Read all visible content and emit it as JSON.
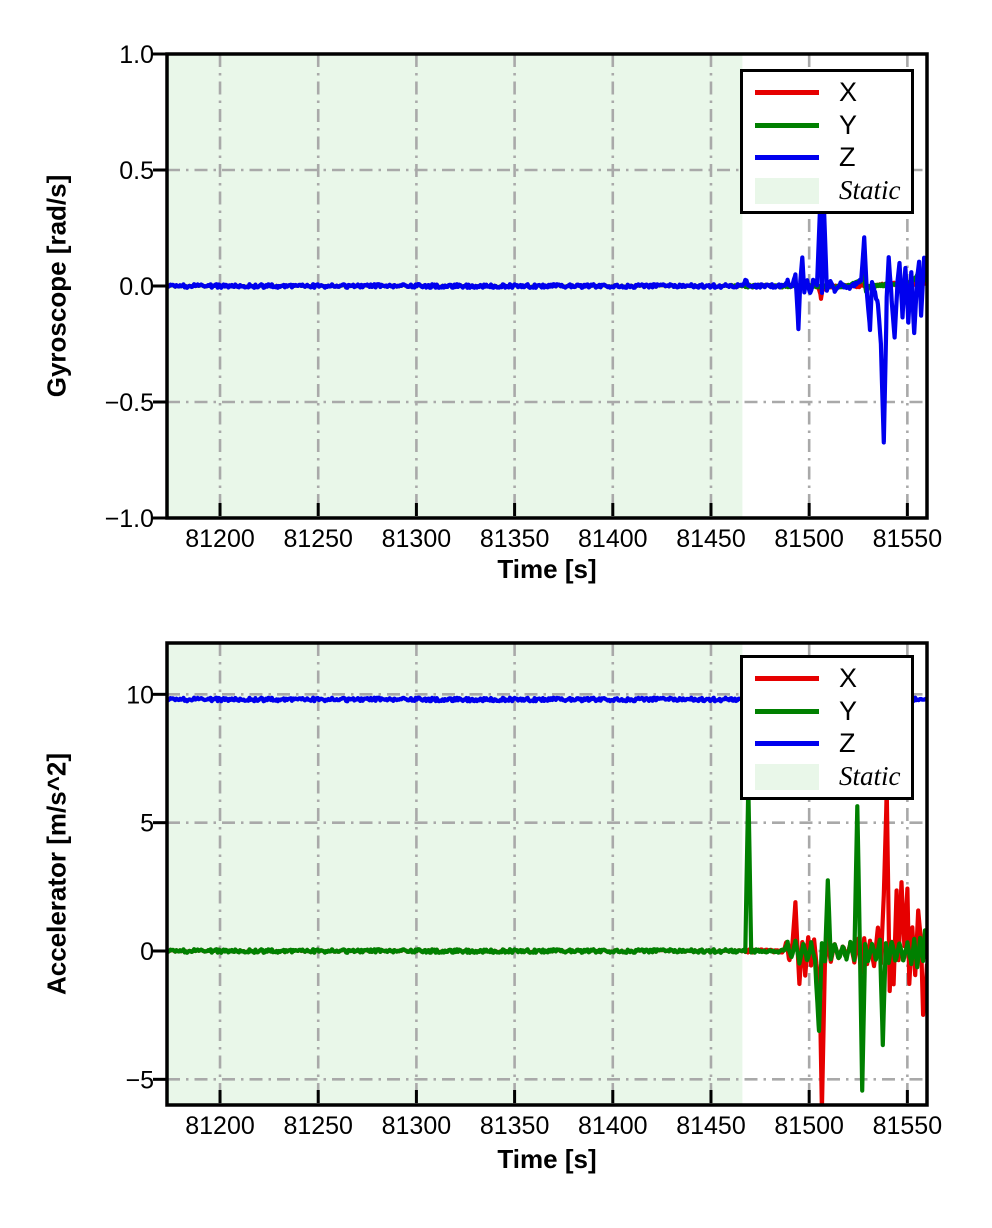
{
  "colors": {
    "x": "#e60000",
    "y": "#008000",
    "z": "#0000ee",
    "static_fill": "#e9f7e9",
    "grid": "#a9a9a9",
    "frame": "#000000"
  },
  "legend": {
    "x": "X",
    "y": "Y",
    "z": "Z",
    "static": "Static"
  },
  "chart_data": [
    {
      "type": "line",
      "title": "",
      "xlabel": "Time [s]",
      "ylabel": "Gyroscope [rad/s]",
      "xlim": [
        81173,
        81560
      ],
      "ylim": [
        -1.0,
        1.0
      ],
      "xticks": [
        81200,
        81250,
        81300,
        81350,
        81400,
        81450,
        81500,
        81550
      ],
      "xtick_labels": [
        "81200",
        "81250",
        "81300",
        "81350",
        "81400",
        "81450",
        "81500",
        "81550"
      ],
      "yticks": [
        {
          "v": -1.0,
          "label": "−1.0"
        },
        {
          "v": -0.5,
          "label": "−0.5"
        },
        {
          "v": 0.0,
          "label": "0.0"
        },
        {
          "v": 0.5,
          "label": "0.5"
        },
        {
          "v": 1.0,
          "label": "1.0"
        }
      ],
      "grid": "dash-dot",
      "legend_position": "upper right",
      "legend_entries": [
        "X",
        "Y",
        "Z",
        "Static"
      ],
      "static_span": [
        81173,
        81466
      ],
      "series": [
        {
          "name": "X",
          "color": "x",
          "noise": 0.006,
          "points": [
            [
              81173,
              0
            ],
            [
              81500,
              0
            ],
            [
              81504.5,
              0
            ],
            [
              81506,
              -0.05
            ],
            [
              81507.5,
              0
            ],
            [
              81530,
              0
            ],
            [
              81545,
              0.01
            ],
            [
              81560,
              0.01
            ]
          ]
        },
        {
          "name": "Y",
          "color": "y",
          "noise": 0.006,
          "points": [
            [
              81173,
              0
            ],
            [
              81520,
              0
            ],
            [
              81526,
              0.02
            ],
            [
              81527.5,
              0.05
            ],
            [
              81529,
              -0.02
            ],
            [
              81531,
              0
            ],
            [
              81550,
              0.01
            ],
            [
              81554,
              0.03
            ],
            [
              81556,
              0.07
            ],
            [
              81558,
              0.02
            ],
            [
              81560,
              0.05
            ]
          ]
        },
        {
          "name": "Z",
          "color": "z",
          "noise": 0.008,
          "points": [
            [
              81173,
              0
            ],
            [
              81460,
              0
            ],
            [
              81466,
              0.005
            ],
            [
              81467.5,
              0.03
            ],
            [
              81469,
              0
            ],
            [
              81487,
              0
            ],
            [
              81489,
              0.02
            ],
            [
              81491,
              -0.01
            ],
            [
              81493,
              0.05
            ],
            [
              81494.5,
              -0.18
            ],
            [
              81495.5,
              0.02
            ],
            [
              81496.5,
              0.13
            ],
            [
              81497.5,
              -0.02
            ],
            [
              81499,
              0.02
            ],
            [
              81500.5,
              -0.03
            ],
            [
              81502,
              0.02
            ],
            [
              81504,
              0
            ],
            [
              81505.5,
              0.33
            ],
            [
              81506.5,
              -0.03
            ],
            [
              81507.5,
              0.35
            ],
            [
              81509,
              -0.02
            ],
            [
              81511,
              0.02
            ],
            [
              81513,
              -0.02
            ],
            [
              81516,
              0.01
            ],
            [
              81520,
              -0.01
            ],
            [
              81524,
              0.01
            ],
            [
              81526.5,
              0.03
            ],
            [
              81528,
              0.21
            ],
            [
              81529.5,
              -0.04
            ],
            [
              81531,
              -0.19
            ],
            [
              81532,
              0.02
            ],
            [
              81533.5,
              -0.03
            ],
            [
              81535,
              -0.08
            ],
            [
              81536.5,
              -0.25
            ],
            [
              81538,
              -0.67
            ],
            [
              81539.5,
              -0.05
            ],
            [
              81540.5,
              0.12
            ],
            [
              81542,
              -0.06
            ],
            [
              81543.5,
              -0.23
            ],
            [
              81545,
              0.02
            ],
            [
              81546,
              0.1
            ],
            [
              81547.5,
              -0.13
            ],
            [
              81549,
              0.08
            ],
            [
              81550.5,
              -0.16
            ],
            [
              81552,
              0.06
            ],
            [
              81553.5,
              -0.21
            ],
            [
              81555,
              0.04
            ],
            [
              81556,
              0.11
            ],
            [
              81557,
              -0.13
            ],
            [
              81558.5,
              0.12
            ],
            [
              81560,
              0.04
            ]
          ]
        }
      ]
    },
    {
      "type": "line",
      "title": "",
      "xlabel": "Time [s]",
      "ylabel": "Accelerator [m/s^2]",
      "xlim": [
        81173,
        81560
      ],
      "ylim": [
        -6,
        12
      ],
      "xticks": [
        81200,
        81250,
        81300,
        81350,
        81400,
        81450,
        81500,
        81550
      ],
      "xtick_labels": [
        "81200",
        "81250",
        "81300",
        "81350",
        "81400",
        "81450",
        "81500",
        "81550"
      ],
      "yticks": [
        {
          "v": -5,
          "label": "−5"
        },
        {
          "v": 0,
          "label": "0"
        },
        {
          "v": 5,
          "label": "5"
        },
        {
          "v": 10,
          "label": "10"
        }
      ],
      "grid": "dash-dot",
      "legend_position": "upper right",
      "legend_entries": [
        "X",
        "Y",
        "Z",
        "Static"
      ],
      "static_span": [
        81173,
        81466
      ],
      "series": [
        {
          "name": "X",
          "color": "x",
          "noise": 0.06,
          "points": [
            [
              81173,
              0
            ],
            [
              81487,
              0
            ],
            [
              81488.5,
              0.4
            ],
            [
              81490,
              -0.4
            ],
            [
              81491.5,
              0.3
            ],
            [
              81493,
              1.9
            ],
            [
              81494,
              0.2
            ],
            [
              81495,
              -1.3
            ],
            [
              81496.5,
              0.4
            ],
            [
              81498,
              -0.9
            ],
            [
              81499.5,
              0.5
            ],
            [
              81501,
              -0.6
            ],
            [
              81502.5,
              0.4
            ],
            [
              81504,
              -0.7
            ],
            [
              81505.5,
              -2.0
            ],
            [
              81506.5,
              -6.2
            ],
            [
              81508,
              -0.5
            ],
            [
              81509.5,
              0.4
            ],
            [
              81511,
              -0.4
            ],
            [
              81513,
              0.3
            ],
            [
              81515,
              -0.3
            ],
            [
              81517,
              0.2
            ],
            [
              81519,
              -0.2
            ],
            [
              81521,
              0.3
            ],
            [
              81523,
              -0.4
            ],
            [
              81525,
              0.5
            ],
            [
              81526.5,
              -0.8
            ],
            [
              81528,
              0.5
            ],
            [
              81529.5,
              -0.5
            ],
            [
              81531,
              0.4
            ],
            [
              81533,
              -0.6
            ],
            [
              81535,
              0.9
            ],
            [
              81536.5,
              -0.5
            ],
            [
              81538,
              2.2
            ],
            [
              81539.5,
              6.3
            ],
            [
              81541,
              -1.6
            ],
            [
              81542,
              0.4
            ],
            [
              81543,
              -1.3
            ],
            [
              81544.5,
              2.3
            ],
            [
              81545.5,
              -0.4
            ],
            [
              81547,
              2.7
            ],
            [
              81548.5,
              0.2
            ],
            [
              81550,
              2.4
            ],
            [
              81551,
              -1.3
            ],
            [
              81552.5,
              0.9
            ],
            [
              81554,
              -1.0
            ],
            [
              81555.5,
              1.6
            ],
            [
              81557,
              0.3
            ],
            [
              81558,
              -2.5
            ],
            [
              81559.5,
              -1.2
            ],
            [
              81560,
              -0.5
            ]
          ]
        },
        {
          "name": "Y",
          "color": "y",
          "noise": 0.07,
          "points": [
            [
              81173,
              0
            ],
            [
              81467.5,
              0
            ],
            [
              81469,
              6.4
            ],
            [
              81470.5,
              0
            ],
            [
              81487,
              0
            ],
            [
              81489,
              0.3
            ],
            [
              81491,
              -0.3
            ],
            [
              81493,
              0.4
            ],
            [
              81495,
              -0.5
            ],
            [
              81497,
              0.3
            ],
            [
              81499,
              -0.4
            ],
            [
              81501,
              0.3
            ],
            [
              81503,
              -0.4
            ],
            [
              81505,
              -3.1
            ],
            [
              81506.5,
              0.3
            ],
            [
              81508,
              -0.4
            ],
            [
              81509.5,
              2.7
            ],
            [
              81511,
              -0.3
            ],
            [
              81513,
              0.3
            ],
            [
              81515,
              -0.3
            ],
            [
              81517,
              0.2
            ],
            [
              81519,
              -0.3
            ],
            [
              81521,
              0.3
            ],
            [
              81523,
              -0.3
            ],
            [
              81524.5,
              5.6
            ],
            [
              81526,
              -0.5
            ],
            [
              81527,
              -5.5
            ],
            [
              81528.5,
              0.3
            ],
            [
              81530,
              -0.4
            ],
            [
              81532,
              0.3
            ],
            [
              81534,
              -0.3
            ],
            [
              81536,
              0.4
            ],
            [
              81537.5,
              -3.6
            ],
            [
              81539,
              0.3
            ],
            [
              81540.5,
              -0.5
            ],
            [
              81542,
              0.4
            ],
            [
              81544,
              -0.4
            ],
            [
              81546,
              0.3
            ],
            [
              81548,
              -0.4
            ],
            [
              81550,
              0.3
            ],
            [
              81552,
              -0.5
            ],
            [
              81553.5,
              0.4
            ],
            [
              81555,
              -0.6
            ],
            [
              81556.5,
              0.5
            ],
            [
              81558,
              -0.4
            ],
            [
              81559,
              0.8
            ],
            [
              81560,
              -0.3
            ]
          ]
        },
        {
          "name": "Z",
          "color": "z",
          "noise": 0.07,
          "points": [
            [
              81173,
              9.8
            ],
            [
              81560,
              9.8
            ]
          ]
        }
      ]
    }
  ]
}
